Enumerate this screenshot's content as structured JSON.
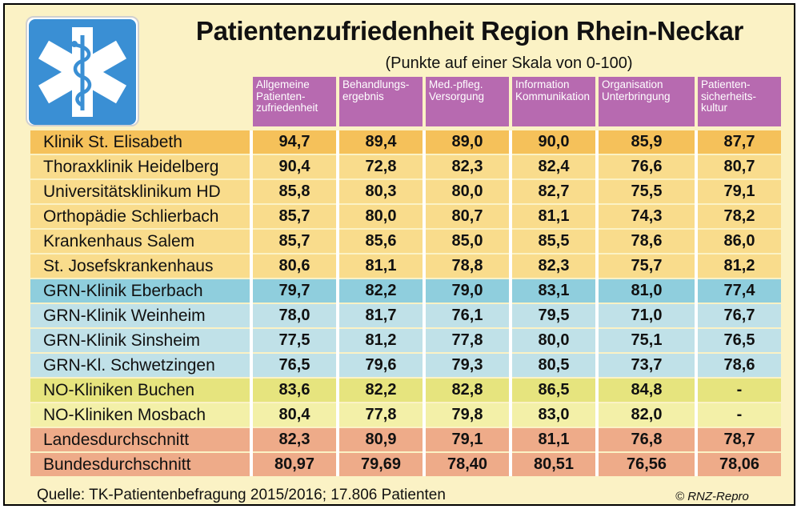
{
  "title": "Patientenzufriedenheit Region Rhein-Neckar",
  "subtitle": "(Punkte auf einer Skala von 0-100)",
  "logo_icon": "star-of-life-icon",
  "columns": [
    "Allgemeine\nPatienten-\nzufriedenheit",
    "Behandlungs-\nergebnis",
    "Med.-pfleg.\nVersorgung",
    "Information\nKommunikation",
    "Organisation\nUnterbringung",
    "Patienten-\nsicherheits-\nkultur"
  ],
  "rows": [
    {
      "name": "Klinik St. Elisabeth",
      "values": [
        "94,7",
        "89,4",
        "89,0",
        "90,0",
        "85,9",
        "87,7"
      ],
      "color": "#f5c15a"
    },
    {
      "name": "Thoraxklinik Heidelberg",
      "values": [
        "90,4",
        "72,8",
        "82,3",
        "82,4",
        "76,6",
        "80,7"
      ],
      "color": "#f9dc8c"
    },
    {
      "name": "Universitätsklinikum HD",
      "values": [
        "85,8",
        "80,3",
        "80,0",
        "82,7",
        "75,5",
        "79,1"
      ],
      "color": "#f9dc8c"
    },
    {
      "name": "Orthopädie Schlierbach",
      "values": [
        "85,7",
        "80,0",
        "80,7",
        "81,1",
        "74,3",
        "78,2"
      ],
      "color": "#f9dc8c"
    },
    {
      "name": "Krankenhaus Salem",
      "values": [
        "85,7",
        "85,6",
        "85,0",
        "85,5",
        "78,6",
        "86,0"
      ],
      "color": "#f9dc8c"
    },
    {
      "name": "St. Josefskrankenhaus",
      "values": [
        "80,6",
        "81,1",
        "78,8",
        "82,3",
        "75,7",
        "81,2"
      ],
      "color": "#f9dc8c"
    },
    {
      "name": "GRN-Klinik Eberbach",
      "values": [
        "79,7",
        "82,2",
        "79,0",
        "83,1",
        "81,0",
        "77,4"
      ],
      "color": "#8fcedd"
    },
    {
      "name": "GRN-Klinik Weinheim",
      "values": [
        "78,0",
        "81,7",
        "76,1",
        "79,5",
        "71,0",
        "76,7"
      ],
      "color": "#c0e1e8"
    },
    {
      "name": "GRN-Klinik Sinsheim",
      "values": [
        "77,5",
        "81,2",
        "77,8",
        "80,0",
        "75,1",
        "76,5"
      ],
      "color": "#c0e1e8"
    },
    {
      "name": "GRN-Kl. Schwetzingen",
      "values": [
        "76,5",
        "79,6",
        "79,3",
        "80,5",
        "73,7",
        "78,6"
      ],
      "color": "#c0e1e8"
    },
    {
      "name": "NO-Kliniken Buchen",
      "values": [
        "83,6",
        "82,2",
        "82,8",
        "86,5",
        "84,8",
        "-"
      ],
      "color": "#e6e47e"
    },
    {
      "name": "NO-Kliniken Mosbach",
      "values": [
        "80,4",
        "77,8",
        "79,8",
        "83,0",
        "82,0",
        "-"
      ],
      "color": "#f3f0a8"
    },
    {
      "name": "Landesdurchschnitt",
      "values": [
        "82,3",
        "80,9",
        "79,1",
        "81,1",
        "76,8",
        "78,7"
      ],
      "color": "#eeab89"
    },
    {
      "name": "Bundesdurchschnitt",
      "values": [
        "80,97",
        "79,69",
        "78,40",
        "80,51",
        "76,56",
        "78,06"
      ],
      "color": "#eeab89"
    }
  ],
  "chart_data": {
    "type": "table",
    "title": "Patientenzufriedenheit Region Rhein-Neckar",
    "subtitle": "(Punkte auf einer Skala von 0-100)",
    "columns": [
      "Allgemeine Patienten-zufriedenheit",
      "Behandlungs-ergebnis",
      "Med.-pfleg. Versorgung",
      "Information Kommunikation",
      "Organisation Unterbringung",
      "Patienten-sicherheits-kultur"
    ],
    "rows": [
      {
        "name": "Klinik St. Elisabeth",
        "values": [
          94.7,
          89.4,
          89.0,
          90.0,
          85.9,
          87.7
        ]
      },
      {
        "name": "Thoraxklinik Heidelberg",
        "values": [
          90.4,
          72.8,
          82.3,
          82.4,
          76.6,
          80.7
        ]
      },
      {
        "name": "Universitätsklinikum HD",
        "values": [
          85.8,
          80.3,
          80.0,
          82.7,
          75.5,
          79.1
        ]
      },
      {
        "name": "Orthopädie Schlierbach",
        "values": [
          85.7,
          80.0,
          80.7,
          81.1,
          74.3,
          78.2
        ]
      },
      {
        "name": "Krankenhaus Salem",
        "values": [
          85.7,
          85.6,
          85.0,
          85.5,
          78.6,
          86.0
        ]
      },
      {
        "name": "St. Josefskrankenhaus",
        "values": [
          80.6,
          81.1,
          78.8,
          82.3,
          75.7,
          81.2
        ]
      },
      {
        "name": "GRN-Klinik Eberbach",
        "values": [
          79.7,
          82.2,
          79.0,
          83.1,
          81.0,
          77.4
        ]
      },
      {
        "name": "GRN-Klinik Weinheim",
        "values": [
          78.0,
          81.7,
          76.1,
          79.5,
          71.0,
          76.7
        ]
      },
      {
        "name": "GRN-Klinik Sinsheim",
        "values": [
          77.5,
          81.2,
          77.8,
          80.0,
          75.1,
          76.5
        ]
      },
      {
        "name": "GRN-Kl. Schwetzingen",
        "values": [
          76.5,
          79.6,
          79.3,
          80.5,
          73.7,
          78.6
        ]
      },
      {
        "name": "NO-Kliniken Buchen",
        "values": [
          83.6,
          82.2,
          82.8,
          86.5,
          84.8,
          null
        ]
      },
      {
        "name": "NO-Kliniken Mosbach",
        "values": [
          80.4,
          77.8,
          79.8,
          83.0,
          82.0,
          null
        ]
      },
      {
        "name": "Landesdurchschnitt",
        "values": [
          82.3,
          80.9,
          79.1,
          81.1,
          76.8,
          78.7
        ]
      },
      {
        "name": "Bundesdurchschnitt",
        "values": [
          80.97,
          79.69,
          78.4,
          80.51,
          76.56,
          78.06
        ]
      }
    ]
  },
  "source": "Quelle: TK-Patientenbefragung 2015/2016; 17.806 Patienten",
  "copyright": "© RNZ-Repro"
}
